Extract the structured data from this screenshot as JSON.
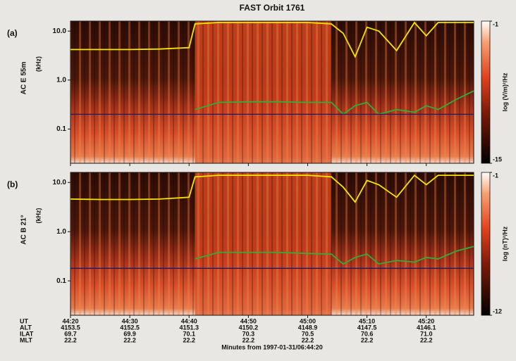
{
  "title": "FAST Orbit 1761",
  "chart_data": [
    {
      "type": "spectrogram",
      "panel_label": "(a)",
      "ylabel": "AC E 55m",
      "yunit": "(kHz)",
      "log_y": true,
      "ylim": [
        0.02,
        16
      ],
      "yticks": [
        {
          "value": 10,
          "label": "10.0"
        },
        {
          "value": 1,
          "label": "1.0"
        },
        0.1
      ],
      "xlim": [
        0,
        68
      ],
      "xticks": [
        0,
        10,
        20,
        30,
        40,
        50,
        60
      ],
      "colorbar_label": "log (V/m)²/Hz",
      "zlim": [
        -15,
        -1
      ],
      "zticks": [
        -1,
        -15
      ],
      "x": [
        0,
        5,
        10,
        15,
        20,
        21,
        25,
        30,
        35,
        40,
        44,
        46,
        48,
        50,
        52,
        55,
        58,
        60,
        62,
        65,
        68
      ],
      "series": [
        {
          "color": "#f2e600",
          "values": [
            4.2,
            4.2,
            4.2,
            4.3,
            4.6,
            14,
            15,
            15,
            15,
            15,
            14,
            9,
            3,
            12,
            10,
            4,
            15,
            8,
            15,
            15,
            15
          ]
        },
        {
          "color": "#2fae3a",
          "values": [
            null,
            null,
            null,
            null,
            null,
            0.25,
            0.35,
            0.36,
            0.36,
            0.35,
            0.35,
            0.2,
            0.3,
            0.35,
            0.2,
            0.25,
            0.22,
            0.3,
            0.25,
            0.4,
            0.6
          ]
        },
        {
          "color": "#1c1c66",
          "values": [
            0.2,
            0.2,
            0.2,
            0.2,
            0.2,
            0.2,
            0.2,
            0.2,
            0.2,
            0.2,
            0.2,
            0.2,
            0.2,
            0.2,
            0.2,
            0.2,
            0.2,
            0.2,
            0.2,
            0.2,
            0.2
          ]
        }
      ]
    },
    {
      "type": "spectrogram",
      "panel_label": "(b)",
      "ylabel": "AC B 21°",
      "yunit": "(kHz)",
      "log_y": true,
      "ylim": [
        0.02,
        16
      ],
      "yticks": [
        {
          "value": 10,
          "label": "10.0"
        },
        {
          "value": 1,
          "label": "1.0"
        },
        0.1
      ],
      "xlim": [
        0,
        68
      ],
      "xticks": [
        {
          "value": 0,
          "label": "44:20"
        },
        {
          "value": 10,
          "label": "44:30"
        },
        {
          "value": 20,
          "label": "44:40"
        },
        {
          "value": 30,
          "label": "44:50"
        },
        {
          "value": 40,
          "label": "45:00"
        },
        {
          "value": 50,
          "label": "45:10"
        },
        {
          "value": 60,
          "label": "45:20"
        }
      ],
      "xlabel": "Minutes from 1997-01-31/06:44:20",
      "ut_label": "UT",
      "ephemeris": [
        {
          "label": "ALT",
          "values": [
            "4153.5",
            "4152.5",
            "4151.3",
            "4150.2",
            "4148.9",
            "4147.5",
            "4146.1"
          ]
        },
        {
          "label": "ILAT",
          "values": [
            "69.7",
            "69.9",
            "70.1",
            "70.3",
            "70.5",
            "70.6",
            "71.0"
          ]
        },
        {
          "label": "MLT",
          "values": [
            "22.2",
            "22.2",
            "22.2",
            "22.2",
            "22.2",
            "22.2",
            "22.2"
          ]
        }
      ],
      "colorbar_label": "log (nT)²/Hz",
      "zlim": [
        -12,
        -1
      ],
      "zticks": [
        -1,
        -12
      ],
      "x": [
        0,
        5,
        10,
        15,
        20,
        21,
        25,
        30,
        35,
        40,
        44,
        46,
        48,
        50,
        52,
        55,
        58,
        60,
        62,
        65,
        68
      ],
      "series": [
        {
          "color": "#f2e600",
          "values": [
            4.6,
            4.5,
            4.5,
            4.6,
            5,
            13,
            14,
            14,
            14,
            14,
            13,
            8,
            4,
            11,
            9,
            5,
            14,
            9,
            14,
            14,
            14
          ]
        },
        {
          "color": "#2fae3a",
          "values": [
            null,
            null,
            null,
            null,
            null,
            0.28,
            0.38,
            0.38,
            0.38,
            0.36,
            0.35,
            0.22,
            0.3,
            0.35,
            0.22,
            0.26,
            0.24,
            0.3,
            0.28,
            0.4,
            0.5
          ]
        },
        {
          "color": "#1c1c66",
          "values": [
            0.18,
            0.18,
            0.18,
            0.18,
            0.18,
            0.18,
            0.18,
            0.18,
            0.18,
            0.18,
            0.18,
            0.18,
            0.18,
            0.18,
            0.18,
            0.18,
            0.18,
            0.18,
            0.18,
            0.18,
            0.18
          ]
        }
      ]
    }
  ]
}
